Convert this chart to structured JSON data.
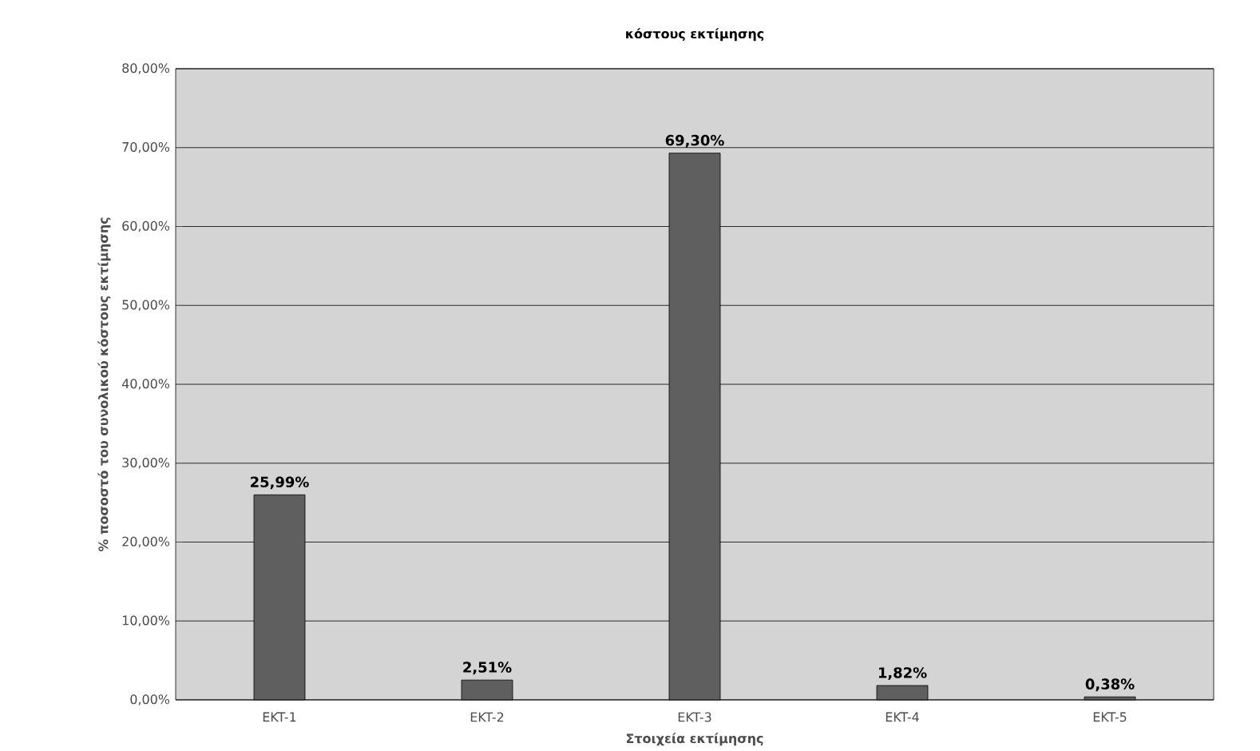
{
  "chart_data": {
    "type": "bar",
    "title": "κόστους εκτίμησης",
    "xlabel": "Στοιχεία εκτίμησης",
    "ylabel": "% ποσοστό του συνολικού κόστους εκτίμησης",
    "categories": [
      "EKT-1",
      "EKT-2",
      "EKT-3",
      "EKT-4",
      "EKT-5"
    ],
    "values": [
      25.99,
      2.51,
      69.3,
      1.82,
      0.38
    ],
    "value_labels": [
      "25,99%",
      "2,51%",
      "69,30%",
      "1,82%",
      "0,38%"
    ],
    "color": "#5f5f5f",
    "ylim": [
      0,
      80
    ],
    "yticks": [
      {
        "value": 0,
        "label": "0,00%"
      },
      {
        "value": 10,
        "label": "10,00%"
      },
      {
        "value": 20,
        "label": "20,00%"
      },
      {
        "value": 30,
        "label": "30,00%"
      },
      {
        "value": 40,
        "label": "40,00%"
      },
      {
        "value": 50,
        "label": "50,00%"
      },
      {
        "value": 60,
        "label": "60,00%"
      },
      {
        "value": 70,
        "label": "70,00%"
      },
      {
        "value": 80,
        "label": "80,00%"
      }
    ],
    "grid": "y"
  }
}
